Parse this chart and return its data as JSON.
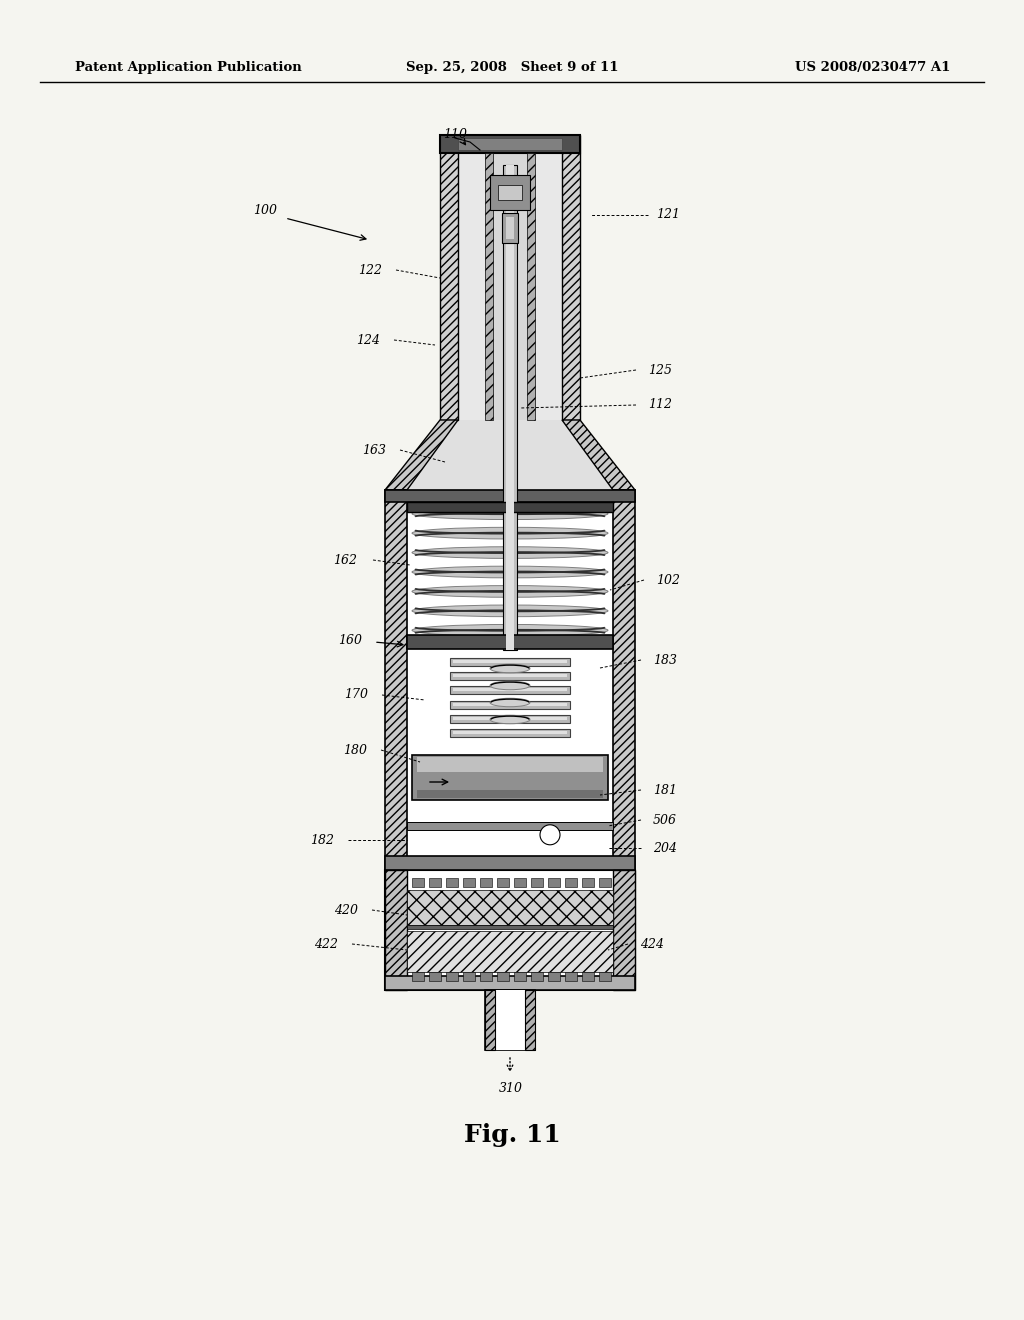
{
  "title": "Fig. 11",
  "header_left": "Patent Application Publication",
  "header_center": "Sep. 25, 2008   Sheet 9 of 11",
  "header_right": "US 2008/0230477 A1",
  "bg_color": "#f5f5f0"
}
